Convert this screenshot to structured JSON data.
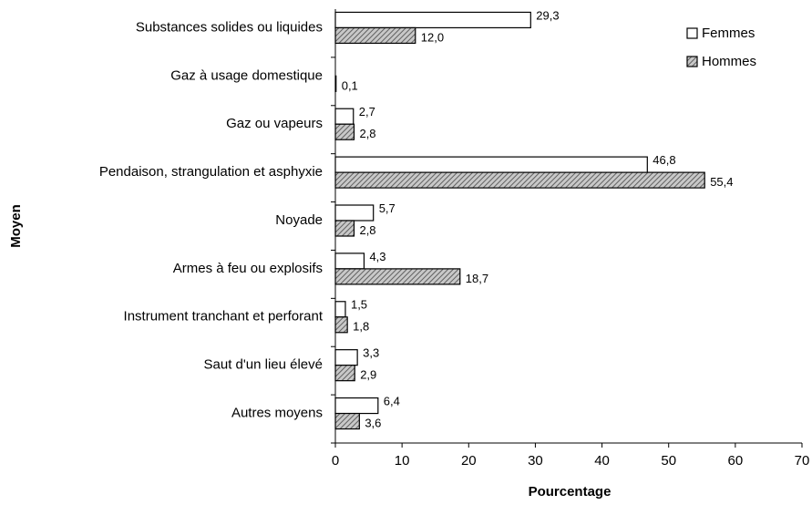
{
  "chart_data": {
    "type": "barh",
    "x_label": "Pourcentage",
    "y_label": "Moyen",
    "categories": [
      "Substances solides ou liquides",
      "Gaz à usage domestique",
      "Gaz ou vapeurs",
      "Pendaison, strangulation et asphyxie",
      "Noyade",
      "Armes à feu ou explosifs",
      "Instrument tranchant et perforant",
      "Saut d'un lieu élevé",
      "Autres moyens"
    ],
    "series": [
      {
        "name": "Femmes",
        "color": "#ffffff",
        "values": [
          29.3,
          null,
          2.7,
          46.8,
          5.7,
          4.3,
          1.5,
          3.3,
          6.4
        ],
        "value_labels": [
          "29,3",
          null,
          "2,7",
          "46,8",
          "5,7",
          "4,3",
          "1,5",
          "3,3",
          "6,4"
        ]
      },
      {
        "name": "Hommes",
        "color": "#808080",
        "hatched": true,
        "values": [
          12.0,
          0.1,
          2.8,
          55.4,
          2.8,
          18.7,
          1.8,
          2.9,
          3.6
        ],
        "value_labels": [
          "12,0",
          "0,1",
          "2,8",
          "55,4",
          "2,8",
          "18,7",
          "1,8",
          "2,9",
          "3,6"
        ]
      }
    ],
    "xlim": [
      0,
      70
    ],
    "xticks": [
      0,
      10,
      20,
      30,
      40,
      50,
      60,
      70
    ],
    "legend": "top-right"
  }
}
